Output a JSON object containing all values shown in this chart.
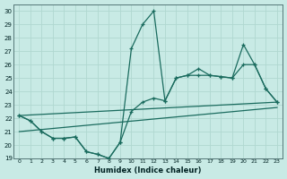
{
  "xlabel": "Humidex (Indice chaleur)",
  "bg_color": "#c8eae5",
  "line_color": "#1a6b5e",
  "grid_color": "#b0d8d0",
  "xlim": [
    -0.5,
    23.5
  ],
  "ylim_min": 19,
  "ylim_max": 30.5,
  "yticks": [
    19,
    20,
    21,
    22,
    23,
    24,
    25,
    26,
    27,
    28,
    29,
    30
  ],
  "xticks": [
    0,
    1,
    2,
    3,
    4,
    5,
    6,
    7,
    8,
    9,
    10,
    11,
    12,
    13,
    14,
    15,
    16,
    17,
    18,
    19,
    20,
    21,
    22,
    23
  ],
  "s1_x": [
    0,
    1,
    2,
    3,
    4,
    5,
    6,
    7,
    8,
    9,
    10,
    11,
    12,
    13,
    14,
    15,
    16,
    17,
    18,
    19,
    20,
    21,
    22,
    23
  ],
  "s1_y": [
    22.2,
    21.8,
    21.0,
    20.5,
    20.5,
    20.6,
    19.5,
    19.3,
    19.0,
    20.2,
    27.2,
    29.0,
    30.0,
    23.3,
    25.0,
    25.2,
    25.7,
    25.2,
    25.1,
    25.0,
    27.5,
    26.0,
    24.2,
    23.2
  ],
  "s2_x": [
    0,
    1,
    2,
    3,
    4,
    5,
    6,
    7,
    8,
    9,
    10,
    11,
    12,
    13,
    14,
    15,
    16,
    17,
    18,
    19,
    20,
    21,
    22,
    23
  ],
  "s2_y": [
    22.2,
    21.8,
    21.0,
    20.5,
    20.5,
    20.6,
    19.5,
    19.3,
    19.0,
    20.2,
    22.5,
    23.2,
    23.5,
    23.3,
    25.0,
    25.2,
    25.2,
    25.2,
    25.1,
    25.0,
    26.0,
    26.0,
    24.2,
    23.2
  ],
  "trend1_x": [
    0,
    23
  ],
  "trend1_y": [
    22.2,
    23.2
  ],
  "trend2_x": [
    0,
    23
  ],
  "trend2_y": [
    21.0,
    22.8
  ]
}
